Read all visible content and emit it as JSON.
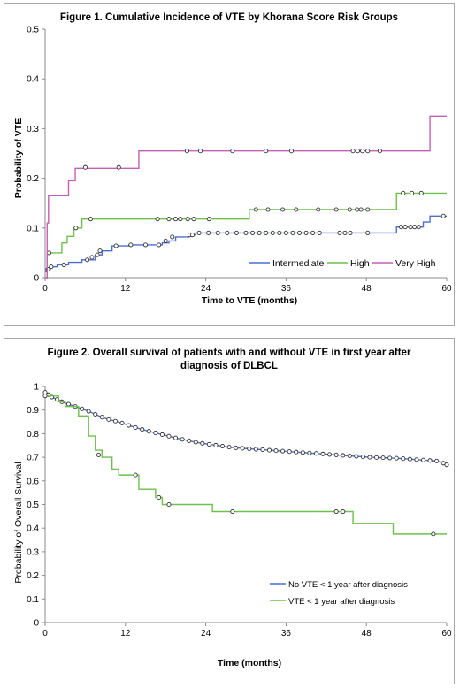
{
  "chart_data": [
    {
      "type": "line",
      "title": "Figure 1. Cumulative Incidence of VTE by Khorana Score Risk Groups",
      "xlabel": "Time to VTE (months)",
      "ylabel": "Probability of VTE",
      "xlim": [
        0,
        60
      ],
      "ylim": [
        0,
        0.5
      ],
      "xticks": [
        "0",
        "12",
        "24",
        "36",
        "48",
        "60"
      ],
      "yticks": [
        "0",
        "0.1",
        "0.2",
        "0.3",
        "0.4",
        "0.5"
      ],
      "grid": false,
      "legend": "bottom-right",
      "series": [
        {
          "name": "Intermediate",
          "color": "#4a6fd4",
          "steps": [
            [
              0,
              0.012
            ],
            [
              0.3,
              0.017
            ],
            [
              0.8,
              0.022
            ],
            [
              1.8,
              0.026
            ],
            [
              3.5,
              0.031
            ],
            [
              5.5,
              0.036
            ],
            [
              7.5,
              0.046
            ],
            [
              8.5,
              0.054
            ],
            [
              10,
              0.064
            ],
            [
              12.5,
              0.066
            ],
            [
              17.5,
              0.07
            ],
            [
              18.5,
              0.074
            ],
            [
              19.5,
              0.082
            ],
            [
              21.5,
              0.086
            ],
            [
              22.5,
              0.09
            ],
            [
              52.5,
              0.102
            ],
            [
              56.5,
              0.112
            ],
            [
              57.5,
              0.124
            ],
            [
              60,
              0.124
            ]
          ],
          "censored": [
            [
              0.4,
              0.017
            ],
            [
              0.9,
              0.022
            ],
            [
              2.8,
              0.026
            ],
            [
              6.3,
              0.036
            ],
            [
              7,
              0.041
            ],
            [
              7.8,
              0.046
            ],
            [
              8.2,
              0.054
            ],
            [
              10.6,
              0.064
            ],
            [
              12.8,
              0.066
            ],
            [
              15,
              0.066
            ],
            [
              17,
              0.066
            ],
            [
              18,
              0.074
            ],
            [
              19,
              0.082
            ],
            [
              21.6,
              0.086
            ],
            [
              22,
              0.086
            ],
            [
              23,
              0.09
            ],
            [
              24.4,
              0.09
            ],
            [
              25.8,
              0.09
            ],
            [
              27.2,
              0.09
            ],
            [
              28.6,
              0.09
            ],
            [
              30,
              0.09
            ],
            [
              31,
              0.09
            ],
            [
              32,
              0.09
            ],
            [
              33,
              0.09
            ],
            [
              34,
              0.09
            ],
            [
              35,
              0.09
            ],
            [
              36,
              0.09
            ],
            [
              37,
              0.09
            ],
            [
              38,
              0.09
            ],
            [
              39,
              0.09
            ],
            [
              40,
              0.09
            ],
            [
              41,
              0.09
            ],
            [
              44,
              0.09
            ],
            [
              44.8,
              0.09
            ],
            [
              45.6,
              0.09
            ],
            [
              48.2,
              0.09
            ],
            [
              53.2,
              0.102
            ],
            [
              53.8,
              0.102
            ],
            [
              54.6,
              0.102
            ],
            [
              55.2,
              0.102
            ],
            [
              55.8,
              0.102
            ],
            [
              59.5,
              0.124
            ]
          ]
        },
        {
          "name": "High",
          "color": "#6cc24a",
          "steps": [
            [
              0,
              0
            ],
            [
              0.3,
              0.05
            ],
            [
              2.5,
              0.07
            ],
            [
              3.3,
              0.083
            ],
            [
              4.3,
              0.1
            ],
            [
              5.5,
              0.118
            ],
            [
              30.5,
              0.137
            ],
            [
              52.5,
              0.17
            ],
            [
              60,
              0.17
            ]
          ],
          "censored": [
            [
              0.6,
              0.05
            ],
            [
              4.6,
              0.1
            ],
            [
              6.8,
              0.118
            ],
            [
              16.8,
              0.118
            ],
            [
              18.5,
              0.118
            ],
            [
              19.5,
              0.118
            ],
            [
              20.2,
              0.118
            ],
            [
              21.3,
              0.118
            ],
            [
              22.2,
              0.118
            ],
            [
              24.5,
              0.118
            ],
            [
              31.5,
              0.137
            ],
            [
              33.3,
              0.137
            ],
            [
              35.5,
              0.137
            ],
            [
              37.5,
              0.137
            ],
            [
              40.8,
              0.137
            ],
            [
              43.5,
              0.137
            ],
            [
              45.5,
              0.137
            ],
            [
              46.6,
              0.137
            ],
            [
              47.2,
              0.137
            ],
            [
              48.2,
              0.137
            ],
            [
              53.5,
              0.17
            ],
            [
              54.8,
              0.17
            ],
            [
              56.2,
              0.17
            ]
          ]
        },
        {
          "name": "Very High",
          "color": "#c85fb5",
          "steps": [
            [
              0,
              0
            ],
            [
              0.3,
              0.11
            ],
            [
              0.5,
              0.165
            ],
            [
              3.5,
              0.195
            ],
            [
              4.5,
              0.22
            ],
            [
              14,
              0.255
            ],
            [
              57.5,
              0.325
            ],
            [
              60,
              0.325
            ]
          ],
          "censored": [
            [
              6,
              0.222
            ],
            [
              11,
              0.222
            ],
            [
              21.2,
              0.255
            ],
            [
              23.2,
              0.255
            ],
            [
              28,
              0.255
            ],
            [
              33,
              0.255
            ],
            [
              36.8,
              0.255
            ],
            [
              46,
              0.255
            ],
            [
              46.7,
              0.255
            ],
            [
              47.4,
              0.255
            ],
            [
              48.2,
              0.255
            ],
            [
              50,
              0.255
            ]
          ]
        }
      ]
    },
    {
      "type": "line",
      "title": "Figure 2. Overall survival of patients with and without VTE in first year after diagnosis of DLBCL",
      "xlabel": "Time (months)",
      "ylabel": "Probability of Overall Survival",
      "xlim": [
        0,
        60
      ],
      "ylim": [
        0,
        1
      ],
      "xticks": [
        "0",
        "12",
        "24",
        "36",
        "48",
        "60"
      ],
      "yticks": [
        "0",
        "0.1",
        "0.2",
        "0.3",
        "0.4",
        "0.5",
        "0.6",
        "0.7",
        "0.8",
        "0.9",
        "1"
      ],
      "grid": false,
      "legend": "bottom-right",
      "series": [
        {
          "name": "No VTE < 1 year after diagnosis",
          "color": "#4a6fd4",
          "points": [
            [
              0,
              0.975
            ],
            [
              0.5,
              0.965
            ],
            [
              1,
              0.955
            ],
            [
              1.8,
              0.945
            ],
            [
              2.5,
              0.935
            ],
            [
              3.5,
              0.925
            ],
            [
              4.5,
              0.915
            ],
            [
              5.5,
              0.905
            ],
            [
              6.5,
              0.895
            ],
            [
              7.5,
              0.882
            ],
            [
              8.5,
              0.87
            ],
            [
              9.5,
              0.86
            ],
            [
              10.5,
              0.853
            ],
            [
              11.5,
              0.845
            ],
            [
              12.5,
              0.835
            ],
            [
              13.5,
              0.826
            ],
            [
              14.5,
              0.818
            ],
            [
              15.5,
              0.81
            ],
            [
              16.5,
              0.803
            ],
            [
              17.5,
              0.796
            ],
            [
              18.5,
              0.789
            ],
            [
              19.5,
              0.782
            ],
            [
              20.5,
              0.776
            ],
            [
              21.5,
              0.77
            ],
            [
              22.5,
              0.764
            ],
            [
              23.5,
              0.759
            ],
            [
              24.5,
              0.755
            ],
            [
              25.5,
              0.751
            ],
            [
              26.5,
              0.747
            ],
            [
              27.5,
              0.743
            ],
            [
              28.5,
              0.74
            ],
            [
              29.5,
              0.738
            ],
            [
              30.5,
              0.736
            ],
            [
              31.5,
              0.734
            ],
            [
              32.5,
              0.732
            ],
            [
              33.5,
              0.73
            ],
            [
              34.5,
              0.728
            ],
            [
              35.5,
              0.726
            ],
            [
              36.5,
              0.724
            ],
            [
              37.5,
              0.722
            ],
            [
              38.5,
              0.72
            ],
            [
              39.5,
              0.718
            ],
            [
              40.5,
              0.716
            ],
            [
              41.5,
              0.714
            ],
            [
              42.5,
              0.712
            ],
            [
              43.5,
              0.71
            ],
            [
              44.5,
              0.708
            ],
            [
              45.5,
              0.706
            ],
            [
              46.5,
              0.704
            ],
            [
              47.5,
              0.702
            ],
            [
              48.5,
              0.7
            ],
            [
              49.5,
              0.699
            ],
            [
              50.5,
              0.698
            ],
            [
              51.5,
              0.697
            ],
            [
              52.5,
              0.696
            ],
            [
              53.5,
              0.694
            ],
            [
              54.5,
              0.692
            ],
            [
              55.5,
              0.69
            ],
            [
              56.5,
              0.688
            ],
            [
              57.5,
              0.686
            ],
            [
              58.5,
              0.684
            ],
            [
              59.5,
              0.675
            ],
            [
              60,
              0.668
            ]
          ]
        },
        {
          "name": "VTE < 1 year after diagnosis",
          "color": "#6cc24a",
          "steps": [
            [
              0,
              0.96
            ],
            [
              2,
              0.935
            ],
            [
              3,
              0.915
            ],
            [
              5,
              0.875
            ],
            [
              6.5,
              0.79
            ],
            [
              7.5,
              0.73
            ],
            [
              8.5,
              0.7
            ],
            [
              10,
              0.65
            ],
            [
              11,
              0.625
            ],
            [
              14,
              0.565
            ],
            [
              16.5,
              0.53
            ],
            [
              17.5,
              0.5
            ],
            [
              25,
              0.47
            ],
            [
              46,
              0.42
            ],
            [
              52,
              0.375
            ],
            [
              60,
              0.375
            ]
          ],
          "censored": [
            [
              0,
              0.96
            ],
            [
              8,
              0.71
            ],
            [
              13.5,
              0.625
            ],
            [
              17,
              0.53
            ],
            [
              18.5,
              0.5
            ],
            [
              28,
              0.47
            ],
            [
              43.5,
              0.47
            ],
            [
              44.5,
              0.47
            ],
            [
              58,
              0.375
            ]
          ]
        }
      ]
    }
  ]
}
